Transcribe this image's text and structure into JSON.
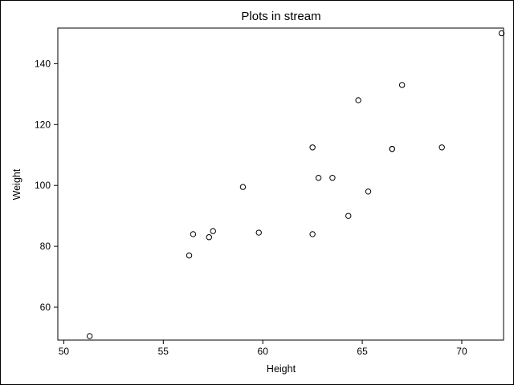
{
  "chart_data": {
    "type": "scatter",
    "title": "Plots in stream",
    "xlabel": "Height",
    "ylabel": "Weight",
    "xlim": [
      49.7,
      72.1
    ],
    "ylim": [
      49.2,
      151.7
    ],
    "xticks": [
      50,
      55,
      60,
      65,
      70
    ],
    "yticks": [
      60,
      80,
      100,
      120,
      140
    ],
    "grid": false,
    "marker": "open-circle",
    "colors": {
      "marker": "#000000",
      "axis": "#000000",
      "background": "#ffffff"
    },
    "points": [
      {
        "x": 51.3,
        "y": 50.5
      },
      {
        "x": 56.3,
        "y": 77.0
      },
      {
        "x": 56.5,
        "y": 84.0
      },
      {
        "x": 57.3,
        "y": 83.0
      },
      {
        "x": 57.5,
        "y": 85.0
      },
      {
        "x": 59.0,
        "y": 99.5
      },
      {
        "x": 59.8,
        "y": 84.5
      },
      {
        "x": 62.5,
        "y": 112.5
      },
      {
        "x": 62.5,
        "y": 84.0
      },
      {
        "x": 62.8,
        "y": 102.5
      },
      {
        "x": 63.5,
        "y": 102.5
      },
      {
        "x": 64.3,
        "y": 90.0
      },
      {
        "x": 64.8,
        "y": 128.0
      },
      {
        "x": 65.3,
        "y": 98.0
      },
      {
        "x": 66.5,
        "y": 112.0
      },
      {
        "x": 66.5,
        "y": 112.0
      },
      {
        "x": 67.0,
        "y": 133.0
      },
      {
        "x": 69.0,
        "y": 112.5
      },
      {
        "x": 72.0,
        "y": 150.0
      }
    ]
  }
}
